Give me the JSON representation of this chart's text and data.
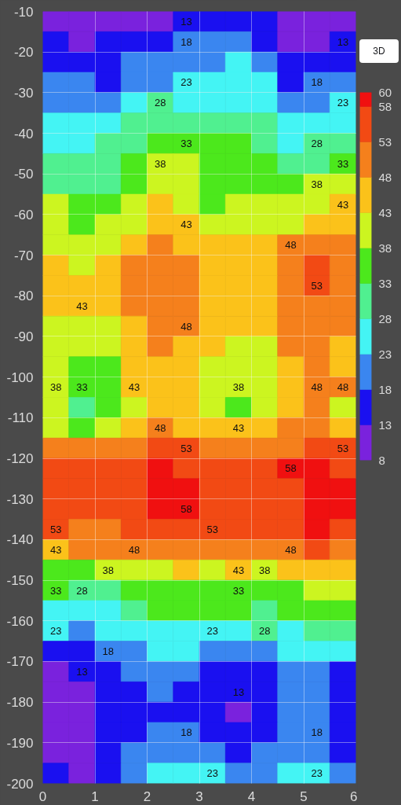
{
  "chart_data": {
    "type": "heatmap",
    "cells": [
      [
        10,
        10,
        10,
        10,
        10,
        13,
        15,
        15,
        15,
        10,
        10,
        10
      ],
      [
        15,
        10,
        15,
        15,
        15,
        18,
        20,
        20,
        15,
        10,
        10,
        13
      ],
      [
        15,
        15,
        15,
        20,
        20,
        20,
        20,
        25,
        20,
        15,
        15,
        15
      ],
      [
        20,
        20,
        15,
        20,
        20,
        23,
        25,
        25,
        25,
        15,
        18,
        20
      ],
      [
        20,
        20,
        20,
        25,
        28,
        25,
        25,
        25,
        25,
        20,
        20,
        23
      ],
      [
        25,
        25,
        25,
        30,
        30,
        30,
        30,
        30,
        30,
        25,
        25,
        25
      ],
      [
        25,
        25,
        30,
        30,
        35,
        33,
        35,
        35,
        30,
        25,
        28,
        30
      ],
      [
        30,
        30,
        30,
        35,
        38,
        40,
        35,
        35,
        35,
        30,
        30,
        33
      ],
      [
        30,
        30,
        30,
        35,
        40,
        40,
        35,
        35,
        35,
        35,
        38,
        40
      ],
      [
        40,
        35,
        35,
        40,
        45,
        40,
        35,
        40,
        40,
        40,
        40,
        43
      ],
      [
        40,
        35,
        40,
        40,
        45,
        43,
        40,
        40,
        40,
        40,
        45,
        45
      ],
      [
        40,
        40,
        40,
        45,
        50,
        45,
        45,
        45,
        45,
        48,
        50,
        50
      ],
      [
        45,
        40,
        45,
        50,
        50,
        50,
        45,
        45,
        45,
        50,
        55,
        50
      ],
      [
        45,
        45,
        45,
        50,
        50,
        50,
        45,
        45,
        45,
        50,
        53,
        50
      ],
      [
        45,
        43,
        45,
        50,
        50,
        50,
        45,
        45,
        45,
        50,
        50,
        50
      ],
      [
        40,
        40,
        40,
        45,
        50,
        48,
        45,
        45,
        45,
        50,
        50,
        50
      ],
      [
        40,
        40,
        40,
        45,
        50,
        45,
        45,
        40,
        40,
        50,
        50,
        45
      ],
      [
        40,
        35,
        35,
        45,
        45,
        45,
        40,
        40,
        40,
        45,
        50,
        45
      ],
      [
        38,
        33,
        35,
        43,
        45,
        45,
        40,
        38,
        40,
        45,
        48,
        48
      ],
      [
        40,
        30,
        35,
        40,
        45,
        45,
        40,
        35,
        40,
        45,
        50,
        40
      ],
      [
        40,
        35,
        40,
        45,
        48,
        45,
        45,
        43,
        45,
        50,
        50,
        45
      ],
      [
        50,
        50,
        50,
        50,
        55,
        53,
        50,
        50,
        50,
        50,
        55,
        53
      ],
      [
        55,
        55,
        55,
        55,
        59,
        55,
        55,
        55,
        55,
        58,
        59,
        55
      ],
      [
        55,
        55,
        55,
        55,
        59,
        59,
        55,
        55,
        55,
        55,
        59,
        59
      ],
      [
        55,
        55,
        55,
        55,
        59,
        58,
        55,
        55,
        55,
        55,
        59,
        59
      ],
      [
        53,
        50,
        50,
        55,
        55,
        55,
        53,
        55,
        55,
        55,
        59,
        55
      ],
      [
        43,
        50,
        50,
        48,
        50,
        50,
        50,
        50,
        50,
        48,
        55,
        50
      ],
      [
        35,
        35,
        38,
        40,
        40,
        45,
        40,
        43,
        38,
        45,
        45,
        45
      ],
      [
        33,
        28,
        30,
        35,
        35,
        35,
        35,
        33,
        35,
        35,
        40,
        40
      ],
      [
        25,
        25,
        25,
        30,
        35,
        35,
        35,
        35,
        30,
        35,
        35,
        35
      ],
      [
        23,
        20,
        25,
        25,
        25,
        25,
        23,
        25,
        28,
        25,
        30,
        30
      ],
      [
        15,
        15,
        18,
        20,
        25,
        25,
        20,
        20,
        20,
        25,
        25,
        25
      ],
      [
        10,
        13,
        15,
        20,
        20,
        20,
        15,
        15,
        15,
        20,
        20,
        15
      ],
      [
        10,
        10,
        15,
        15,
        20,
        15,
        15,
        13,
        15,
        20,
        20,
        15
      ],
      [
        10,
        10,
        15,
        15,
        15,
        15,
        15,
        10,
        15,
        20,
        20,
        15
      ],
      [
        10,
        10,
        15,
        15,
        20,
        18,
        15,
        15,
        15,
        20,
        18,
        15
      ],
      [
        10,
        10,
        15,
        20,
        20,
        20,
        20,
        15,
        20,
        20,
        20,
        15
      ],
      [
        15,
        10,
        15,
        20,
        25,
        25,
        23,
        20,
        20,
        25,
        23,
        20
      ]
    ],
    "cell_labels": [
      [
        null,
        null,
        null,
        null,
        null,
        "13",
        null,
        null,
        null,
        null,
        null,
        null
      ],
      [
        null,
        null,
        null,
        null,
        null,
        "18",
        null,
        null,
        null,
        null,
        null,
        "13"
      ],
      [
        null,
        null,
        null,
        null,
        null,
        null,
        null,
        null,
        null,
        null,
        null,
        null
      ],
      [
        null,
        null,
        null,
        null,
        null,
        "23",
        null,
        null,
        null,
        null,
        "18",
        null
      ],
      [
        null,
        null,
        null,
        null,
        "28",
        null,
        null,
        null,
        null,
        null,
        null,
        "23"
      ],
      [
        null,
        null,
        null,
        null,
        null,
        null,
        null,
        null,
        null,
        null,
        null,
        null
      ],
      [
        null,
        null,
        null,
        null,
        null,
        "33",
        null,
        null,
        null,
        null,
        "28",
        null
      ],
      [
        null,
        null,
        null,
        null,
        "38",
        null,
        null,
        null,
        null,
        null,
        null,
        "33"
      ],
      [
        null,
        null,
        null,
        null,
        null,
        null,
        null,
        null,
        null,
        null,
        "38",
        null
      ],
      [
        null,
        null,
        null,
        null,
        null,
        null,
        null,
        null,
        null,
        null,
        null,
        "43"
      ],
      [
        null,
        null,
        null,
        null,
        null,
        "43",
        null,
        null,
        null,
        null,
        null,
        null
      ],
      [
        null,
        null,
        null,
        null,
        null,
        null,
        null,
        null,
        null,
        "48",
        null,
        null
      ],
      [
        null,
        null,
        null,
        null,
        null,
        null,
        null,
        null,
        null,
        null,
        null,
        null
      ],
      [
        null,
        null,
        null,
        null,
        null,
        null,
        null,
        null,
        null,
        null,
        "53",
        null
      ],
      [
        null,
        "43",
        null,
        null,
        null,
        null,
        null,
        null,
        null,
        null,
        null,
        null
      ],
      [
        null,
        null,
        null,
        null,
        null,
        "48",
        null,
        null,
        null,
        null,
        null,
        null
      ],
      [
        null,
        null,
        null,
        null,
        null,
        null,
        null,
        null,
        null,
        null,
        null,
        null
      ],
      [
        null,
        null,
        null,
        null,
        null,
        null,
        null,
        null,
        null,
        null,
        null,
        null
      ],
      [
        "38",
        "33",
        null,
        "43",
        null,
        null,
        null,
        "38",
        null,
        null,
        "48",
        "48"
      ],
      [
        null,
        null,
        null,
        null,
        null,
        null,
        null,
        null,
        null,
        null,
        null,
        null
      ],
      [
        null,
        null,
        null,
        null,
        "48",
        null,
        null,
        "43",
        null,
        null,
        null,
        null
      ],
      [
        null,
        null,
        null,
        null,
        null,
        "53",
        null,
        null,
        null,
        null,
        null,
        "53"
      ],
      [
        null,
        null,
        null,
        null,
        null,
        null,
        null,
        null,
        null,
        "58",
        null,
        null
      ],
      [
        null,
        null,
        null,
        null,
        null,
        null,
        null,
        null,
        null,
        null,
        null,
        null
      ],
      [
        null,
        null,
        null,
        null,
        null,
        "58",
        null,
        null,
        null,
        null,
        null,
        null
      ],
      [
        "53",
        null,
        null,
        null,
        null,
        null,
        "53",
        null,
        null,
        null,
        null,
        null
      ],
      [
        "43",
        null,
        null,
        "48",
        null,
        null,
        null,
        null,
        null,
        "48",
        null,
        null
      ],
      [
        null,
        null,
        "38",
        null,
        null,
        null,
        null,
        "43",
        "38",
        null,
        null,
        null
      ],
      [
        "33",
        "28",
        null,
        null,
        null,
        null,
        null,
        "33",
        null,
        null,
        null,
        null
      ],
      [
        null,
        null,
        null,
        null,
        null,
        null,
        null,
        null,
        null,
        null,
        null,
        null
      ],
      [
        "23",
        null,
        null,
        null,
        null,
        null,
        "23",
        null,
        "28",
        null,
        null,
        null
      ],
      [
        null,
        null,
        "18",
        null,
        null,
        null,
        null,
        null,
        null,
        null,
        null,
        null
      ],
      [
        null,
        "13",
        null,
        null,
        null,
        null,
        null,
        null,
        null,
        null,
        null,
        null
      ],
      [
        null,
        null,
        null,
        null,
        null,
        null,
        null,
        "13",
        null,
        null,
        null,
        null
      ],
      [
        null,
        null,
        null,
        null,
        null,
        null,
        null,
        null,
        null,
        null,
        null,
        null
      ],
      [
        null,
        null,
        null,
        null,
        null,
        "18",
        null,
        null,
        null,
        null,
        "18",
        null
      ],
      [
        null,
        null,
        null,
        null,
        null,
        null,
        null,
        null,
        null,
        null,
        null,
        null
      ],
      [
        null,
        null,
        null,
        null,
        null,
        null,
        "23",
        null,
        null,
        null,
        "23",
        null
      ]
    ],
    "clim": [
      8,
      60
    ],
    "cticks": [
      8,
      13,
      18,
      23,
      28,
      33,
      38,
      43,
      48,
      53,
      58,
      60
    ],
    "colors": [
      "#7a22dd",
      "#1a10f0",
      "#3a86f0",
      "#44f4f4",
      "#50f090",
      "#4ce81c",
      "#ccf520",
      "#fbc21a",
      "#f5801c",
      "#f24a14",
      "#f01010"
    ],
    "xlim": [
      0,
      6
    ],
    "xticks": [
      0,
      1,
      2,
      3,
      4,
      5,
      6
    ],
    "ylim": [
      -200,
      -10
    ],
    "yticks": [
      -10,
      -20,
      -30,
      -40,
      -50,
      -60,
      -70,
      -80,
      -90,
      -100,
      -110,
      -120,
      -130,
      -140,
      -150,
      -160,
      -170,
      -180,
      -190,
      -200
    ],
    "grid": true,
    "annotations": [
      "3D"
    ]
  }
}
